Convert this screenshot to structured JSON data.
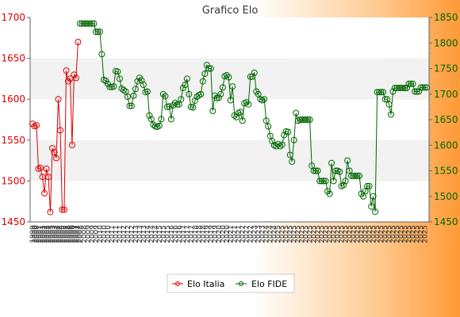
{
  "chart_data": {
    "type": "line",
    "title": "Grafico Elo",
    "legend_position": "bottom",
    "grid": true,
    "y_left": {
      "ylim": [
        1450,
        1700
      ],
      "ticks": [
        1450,
        1500,
        1550,
        1600,
        1650,
        1700
      ],
      "color": "#dd0000"
    },
    "y_right": {
      "ylim": [
        1450,
        1850
      ],
      "ticks": [
        1450,
        1500,
        1550,
        1600,
        1650,
        1700,
        1750,
        1800,
        1850
      ],
      "color": "#006600"
    },
    "series": [
      {
        "name": "Elo Italia",
        "axis": "left",
        "color": "#dd0000",
        "points": [
          [
            0,
            1570
          ],
          [
            1,
            1567
          ],
          [
            2,
            1568
          ],
          [
            3,
            1515
          ],
          [
            4,
            1516
          ],
          [
            5,
            1505
          ],
          [
            6,
            1485
          ],
          [
            7,
            1515
          ],
          [
            8,
            1505
          ],
          [
            9,
            1462
          ],
          [
            10,
            1540
          ],
          [
            11,
            1535
          ],
          [
            12,
            1528
          ],
          [
            13,
            1600
          ],
          [
            14,
            1562
          ],
          [
            15,
            1465
          ],
          [
            16,
            1465
          ],
          [
            17,
            1635
          ],
          [
            18,
            1622
          ],
          [
            19,
            1625
          ],
          [
            20,
            1544
          ],
          [
            21,
            1630
          ],
          [
            22,
            1626
          ],
          [
            23,
            1670
          ]
        ]
      },
      {
        "name": "Elo FIDE",
        "axis": "right",
        "color": "#006600",
        "points": [
          [
            24,
            1838
          ],
          [
            25,
            1838
          ],
          [
            26,
            1838
          ],
          [
            27,
            1838
          ],
          [
            28,
            1838
          ],
          [
            29,
            1838
          ],
          [
            30,
            1838
          ],
          [
            31,
            1838
          ],
          [
            32,
            1822
          ],
          [
            33,
            1822
          ],
          [
            34,
            1822
          ],
          [
            35,
            1778
          ],
          [
            36,
            1728
          ],
          [
            37,
            1726
          ],
          [
            38,
            1720
          ],
          [
            39,
            1714
          ],
          [
            40,
            1714
          ],
          [
            41,
            1715
          ],
          [
            42,
            1745
          ],
          [
            43,
            1744
          ],
          [
            44,
            1730
          ],
          [
            45,
            1711
          ],
          [
            46,
            1708
          ],
          [
            47,
            1705
          ],
          [
            48,
            1695
          ],
          [
            49,
            1677
          ],
          [
            50,
            1677
          ],
          [
            51,
            1697
          ],
          [
            52,
            1710
          ],
          [
            53,
            1725
          ],
          [
            54,
            1732
          ],
          [
            55,
            1727
          ],
          [
            56,
            1718
          ],
          [
            57,
            1704
          ],
          [
            58,
            1705
          ],
          [
            59,
            1658
          ],
          [
            60,
            1651
          ],
          [
            61,
            1640
          ],
          [
            62,
            1637
          ],
          [
            63,
            1636
          ],
          [
            64,
            1638
          ],
          [
            65,
            1651
          ],
          [
            66,
            1700
          ],
          [
            67,
            1696
          ],
          [
            68,
            1675
          ],
          [
            69,
            1676
          ],
          [
            70,
            1651
          ],
          [
            71,
            1678
          ],
          [
            72,
            1683
          ],
          [
            73,
            1680
          ],
          [
            74,
            1680
          ],
          [
            75,
            1690
          ],
          [
            76,
            1712
          ],
          [
            77,
            1718
          ],
          [
            78,
            1730
          ],
          [
            79,
            1700
          ],
          [
            80,
            1675
          ],
          [
            81,
            1674
          ],
          [
            82,
            1687
          ],
          [
            83,
            1695
          ],
          [
            84,
            1698
          ],
          [
            85,
            1700
          ],
          [
            86,
            1725
          ],
          [
            87,
            1740
          ],
          [
            88,
            1757
          ],
          [
            89,
            1750
          ],
          [
            90,
            1750
          ],
          [
            91,
            1667
          ],
          [
            92,
            1697
          ],
          [
            93,
            1692
          ],
          [
            94,
            1693
          ],
          [
            95,
            1700
          ],
          [
            96,
            1713
          ],
          [
            97,
            1735
          ],
          [
            98,
            1737
          ],
          [
            99,
            1733
          ],
          [
            100,
            1688
          ],
          [
            101,
            1715
          ],
          [
            102,
            1658
          ],
          [
            103,
            1655
          ],
          [
            104,
            1663
          ],
          [
            105,
            1665
          ],
          [
            106,
            1648
          ],
          [
            107,
            1682
          ],
          [
            108,
            1684
          ],
          [
            109,
            1680
          ],
          [
            110,
            1734
          ],
          [
            111,
            1734
          ],
          [
            112,
            1742
          ],
          [
            113,
            1705
          ],
          [
            114,
            1700
          ],
          [
            115,
            1690
          ],
          [
            116,
            1688
          ],
          [
            117,
            1690
          ],
          [
            118,
            1648
          ],
          [
            119,
            1637
          ],
          [
            120,
            1618
          ],
          [
            121,
            1608
          ],
          [
            122,
            1600
          ],
          [
            123,
            1598
          ],
          [
            124,
            1602
          ],
          [
            125,
            1598
          ],
          [
            126,
            1601
          ],
          [
            127,
            1620
          ],
          [
            128,
            1627
          ],
          [
            129,
            1626
          ],
          [
            130,
            1581
          ],
          [
            131,
            1568
          ],
          [
            132,
            1610
          ],
          [
            133,
            1663
          ],
          [
            134,
            1648
          ],
          [
            135,
            1650
          ],
          [
            136,
            1650
          ],
          [
            137,
            1650
          ],
          [
            138,
            1650
          ],
          [
            139,
            1650
          ],
          [
            140,
            1650
          ],
          [
            141,
            1560
          ],
          [
            142,
            1550
          ],
          [
            143,
            1550
          ],
          [
            144,
            1550
          ],
          [
            145,
            1530
          ],
          [
            146,
            1530
          ],
          [
            147,
            1530
          ],
          [
            148,
            1530
          ],
          [
            149,
            1510
          ],
          [
            150,
            1505
          ],
          [
            151,
            1565
          ],
          [
            152,
            1530
          ],
          [
            153,
            1550
          ],
          [
            154,
            1550
          ],
          [
            155,
            1548
          ],
          [
            156,
            1520
          ],
          [
            157,
            1522
          ],
          [
            158,
            1530
          ],
          [
            159,
            1570
          ],
          [
            160,
            1550
          ],
          [
            161,
            1540
          ],
          [
            162,
            1540
          ],
          [
            163,
            1540
          ],
          [
            164,
            1540
          ],
          [
            165,
            1540
          ],
          [
            166,
            1505
          ],
          [
            167,
            1500
          ],
          [
            168,
            1510
          ],
          [
            169,
            1520
          ],
          [
            170,
            1520
          ],
          [
            171,
            1480
          ],
          [
            172,
            1500
          ],
          [
            173,
            1470
          ],
          [
            174,
            1704
          ],
          [
            175,
            1704
          ],
          [
            176,
            1704
          ],
          [
            177,
            1704
          ],
          [
            178,
            1690
          ],
          [
            179,
            1690
          ],
          [
            180,
            1680
          ],
          [
            181,
            1660
          ],
          [
            182,
            1705
          ],
          [
            183,
            1712
          ],
          [
            184,
            1712
          ],
          [
            185,
            1712
          ],
          [
            186,
            1712
          ],
          [
            187,
            1712
          ],
          [
            188,
            1712
          ],
          [
            189,
            1712
          ],
          [
            190,
            1720
          ],
          [
            191,
            1720
          ],
          [
            192,
            1720
          ],
          [
            193,
            1705
          ],
          [
            194,
            1705
          ],
          [
            195,
            1705
          ],
          [
            196,
            1713
          ],
          [
            197,
            1713
          ],
          [
            198,
            1713
          ],
          [
            199,
            1713
          ]
        ]
      }
    ],
    "x_ticks": [
      {
        "x": 0,
        "label": "1999"
      },
      {
        "x": 1,
        "label": "2000"
      },
      {
        "x": 2,
        "label": "2000"
      },
      {
        "x": 3,
        "label": "2001"
      },
      {
        "x": 4,
        "label": "2001"
      },
      {
        "x": 5,
        "label": "2001"
      },
      {
        "x": 6,
        "label": "2002"
      },
      {
        "x": 7,
        "label": "2002"
      },
      {
        "x": 8,
        "label": "2002"
      },
      {
        "x": 9,
        "label": "2003"
      },
      {
        "x": 10,
        "label": "2003"
      },
      {
        "x": 11,
        "label": "2003"
      },
      {
        "x": 12,
        "label": "2004"
      },
      {
        "x": 13,
        "label": "2004"
      },
      {
        "x": 14,
        "label": "2004"
      },
      {
        "x": 15,
        "label": "2005"
      },
      {
        "x": 16,
        "label": "2005"
      },
      {
        "x": 17,
        "label": "2005"
      },
      {
        "x": 18,
        "label": "2006"
      },
      {
        "x": 19,
        "label": "2006"
      },
      {
        "x": 20,
        "label": "2006"
      },
      {
        "x": 21,
        "label": "2007"
      },
      {
        "x": 22,
        "label": "2007"
      },
      {
        "x": 23,
        "label": "2007"
      },
      {
        "x": 24,
        "label": "2008"
      },
      {
        "x": 26,
        "label": "2008"
      },
      {
        "x": 28,
        "label": "2009"
      },
      {
        "x": 30,
        "label": "2009"
      },
      {
        "x": 32,
        "label": "2009"
      },
      {
        "x": 34,
        "label": "2010"
      },
      {
        "x": 36,
        "label": "2010"
      },
      {
        "x": 38,
        "label": "2010"
      },
      {
        "x": 40,
        "label": "2011"
      },
      {
        "x": 42,
        "label": "2011"
      },
      {
        "x": 44,
        "label": "2011"
      },
      {
        "x": 46,
        "label": "2012"
      },
      {
        "x": 48,
        "label": "2012"
      },
      {
        "x": 50,
        "label": "2012"
      },
      {
        "x": 52,
        "label": "2013"
      },
      {
        "x": 54,
        "label": "2013"
      },
      {
        "x": 56,
        "label": "2013"
      },
      {
        "x": 58,
        "label": "2014"
      },
      {
        "x": 60,
        "label": "2014"
      },
      {
        "x": 62,
        "label": "2014"
      },
      {
        "x": 64,
        "label": "2015"
      },
      {
        "x": 66,
        "label": "2015"
      },
      {
        "x": 68,
        "label": "2015"
      },
      {
        "x": 70,
        "label": "2016"
      },
      {
        "x": 72,
        "label": "2016"
      },
      {
        "x": 74,
        "label": "2016"
      },
      {
        "x": 76,
        "label": "2017"
      },
      {
        "x": 78,
        "label": "2017"
      },
      {
        "x": 80,
        "label": "2017"
      },
      {
        "x": 82,
        "label": "2018"
      },
      {
        "x": 84,
        "label": "2018"
      },
      {
        "x": 86,
        "label": "2018"
      },
      {
        "x": 88,
        "label": "2019"
      },
      {
        "x": 90,
        "label": "2019"
      },
      {
        "x": 92,
        "label": "2019"
      },
      {
        "x": 94,
        "label": "2020"
      },
      {
        "x": 96,
        "label": "2020"
      },
      {
        "x": 98,
        "label": "2020"
      },
      {
        "x": 100,
        "label": "2021"
      },
      {
        "x": 102,
        "label": "2021"
      },
      {
        "x": 104,
        "label": "2021"
      },
      {
        "x": 106,
        "label": "2022"
      },
      {
        "x": 108,
        "label": "2022"
      },
      {
        "x": 110,
        "label": "2022"
      },
      {
        "x": 112,
        "label": "2023"
      },
      {
        "x": 114,
        "label": "2023"
      },
      {
        "x": 116,
        "label": "2023"
      },
      {
        "x": 118,
        "label": "2024"
      },
      {
        "x": 120,
        "label": "2024"
      },
      {
        "x": 122,
        "label": "2024"
      },
      {
        "x": 124,
        "label": "2025"
      },
      {
        "x": 126,
        "label": "2025"
      },
      {
        "x": 128,
        "label": "2025"
      },
      {
        "x": 130,
        "label": "2025"
      },
      {
        "x": 132,
        "label": "2025"
      },
      {
        "x": 134,
        "label": "2025"
      },
      {
        "x": 136,
        "label": "2025"
      },
      {
        "x": 138,
        "label": "2025"
      },
      {
        "x": 140,
        "label": "2025"
      },
      {
        "x": 142,
        "label": "2025"
      },
      {
        "x": 144,
        "label": "2025"
      },
      {
        "x": 146,
        "label": "2025"
      },
      {
        "x": 148,
        "label": "2025"
      },
      {
        "x": 150,
        "label": "2025"
      },
      {
        "x": 152,
        "label": "2025"
      },
      {
        "x": 154,
        "label": "2025"
      },
      {
        "x": 156,
        "label": "2025"
      },
      {
        "x": 158,
        "label": "2025"
      },
      {
        "x": 160,
        "label": "2025"
      },
      {
        "x": 162,
        "label": "2025"
      },
      {
        "x": 164,
        "label": "2025"
      },
      {
        "x": 166,
        "label": "2025"
      },
      {
        "x": 168,
        "label": "2025"
      },
      {
        "x": 170,
        "label": "2025"
      },
      {
        "x": 172,
        "label": "2025"
      },
      {
        "x": 174,
        "label": "2025"
      },
      {
        "x": 176,
        "label": "2025"
      },
      {
        "x": 178,
        "label": "2025"
      },
      {
        "x": 180,
        "label": "2025"
      },
      {
        "x": 182,
        "label": "2025"
      },
      {
        "x": 184,
        "label": "2025"
      },
      {
        "x": 186,
        "label": "2025"
      },
      {
        "x": 188,
        "label": "2025"
      },
      {
        "x": 190,
        "label": "2025"
      },
      {
        "x": 192,
        "label": "2025"
      },
      {
        "x": 194,
        "label": "2025"
      },
      {
        "x": 196,
        "label": "2025"
      },
      {
        "x": 198,
        "label": "2025"
      }
    ]
  }
}
